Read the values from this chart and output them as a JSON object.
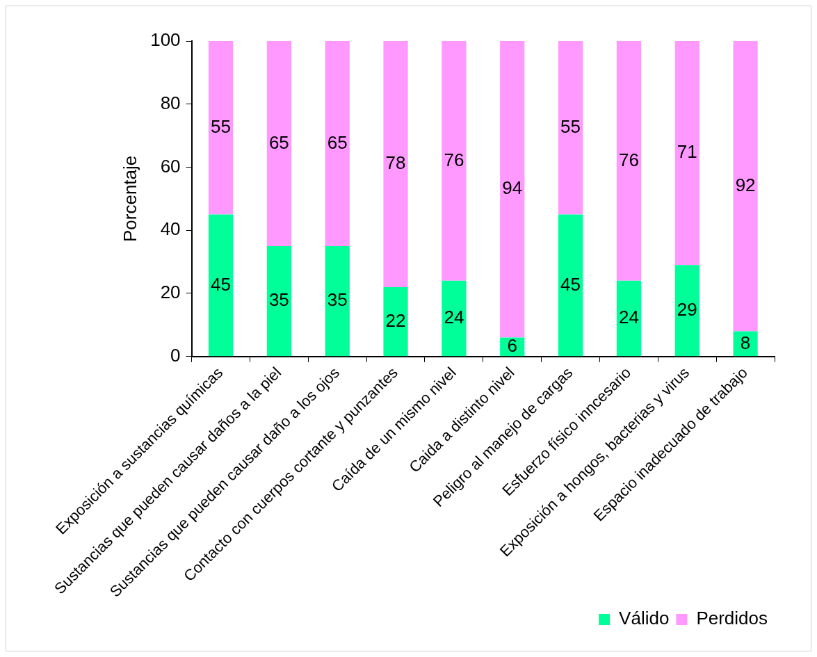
{
  "chart_data": {
    "type": "bar",
    "stacked": true,
    "ylabel": "Porcentaje",
    "categories": [
      "Exposición a sustancias químicas",
      "Sustancias que pueden causar daños a la piel",
      "Sustancias que pueden causar daño a los ojos",
      "Contacto con cuerpos cortante y punzantes",
      "Caída de un mismo nivel",
      "Caida a distinto nivel",
      "Peligro al manejo de cargas",
      "Esfuerzo físico inncesario",
      "Exposición a hongos, bacterias y virus",
      "Espacio inadecuado de trabajo"
    ],
    "series": [
      {
        "name": "Válido",
        "color": "#00ff99",
        "values": [
          45,
          35,
          35,
          22,
          24,
          6,
          45,
          24,
          29,
          8
        ]
      },
      {
        "name": "Perdidos",
        "color": "#ff99ff",
        "values": [
          55,
          65,
          65,
          78,
          76,
          94,
          55,
          76,
          71,
          92
        ]
      }
    ],
    "ylim": [
      0,
      100
    ],
    "yticks": [
      0,
      20,
      40,
      60,
      80,
      100
    ],
    "grid": false,
    "legend": "bottom right",
    "data_labels": true
  }
}
